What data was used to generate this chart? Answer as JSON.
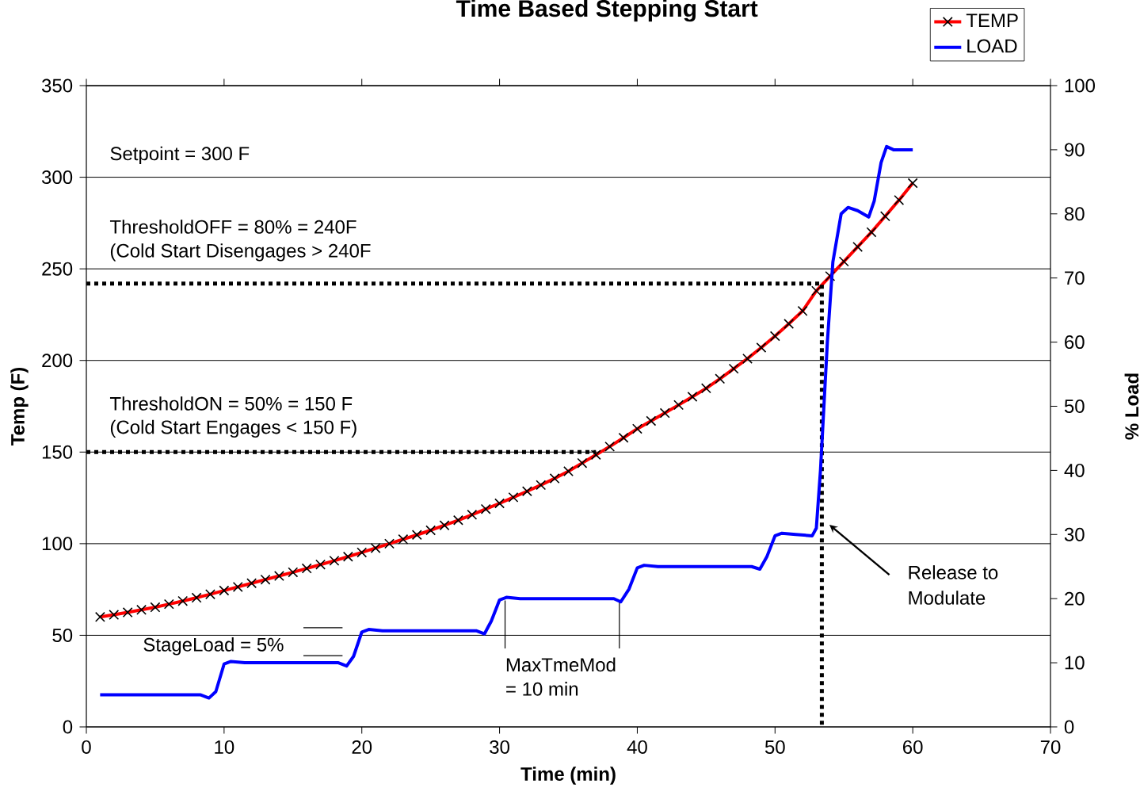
{
  "chart_data": {
    "type": "line",
    "title": "Time Based Stepping Start",
    "xlabel": "Time (min)",
    "ylabel": "Temp (F)",
    "y2label": "% Load",
    "xlim": [
      0,
      70
    ],
    "xticks": [
      0,
      10,
      20,
      30,
      40,
      50,
      60,
      70
    ],
    "ylim": [
      0,
      350
    ],
    "yticks": [
      0,
      50,
      100,
      150,
      200,
      250,
      300,
      350
    ],
    "y2lim": [
      0,
      100
    ],
    "y2ticks": [
      0,
      10,
      20,
      30,
      40,
      50,
      60,
      70,
      80,
      90,
      100
    ],
    "grid": "y",
    "legend": "top right",
    "series": [
      {
        "name": "TEMP",
        "color": "#ff0000",
        "marker": "cross",
        "axis": "y",
        "x": [
          1,
          2,
          3,
          4,
          5,
          6,
          7,
          8,
          9,
          10,
          11,
          12,
          13,
          14,
          15,
          16,
          17,
          18,
          19,
          20,
          21,
          22,
          23,
          24,
          25,
          26,
          27,
          28,
          29,
          30,
          31,
          32,
          33,
          34,
          35,
          36,
          37,
          38,
          39,
          40,
          41,
          42,
          43,
          44,
          45,
          46,
          47,
          48,
          49,
          50,
          51,
          52,
          53,
          54,
          55,
          56,
          57,
          58,
          59,
          60
        ],
        "values": [
          60,
          61.2,
          62.5,
          63.9,
          65.3,
          67,
          68.7,
          70.5,
          72.4,
          74.4,
          76.4,
          78.4,
          80.4,
          82.4,
          84.4,
          86.5,
          88.6,
          90.7,
          92.9,
          95.2,
          97.6,
          100,
          102.4,
          104.8,
          107.3,
          110,
          112.8,
          115.8,
          118.9,
          122,
          125.3,
          128.6,
          132,
          135.6,
          139.5,
          144,
          148.5,
          153,
          157.8,
          162.7,
          167,
          171.3,
          175.7,
          180.2,
          184.8,
          190,
          195.5,
          201,
          207,
          213.3,
          220,
          227,
          238,
          246,
          254,
          262,
          270,
          278.7,
          287.5,
          296.8
        ]
      },
      {
        "name": "LOAD",
        "color": "#0000ff",
        "marker": "none",
        "axis": "y2",
        "x": [
          1,
          8.3,
          8.9,
          9.4,
          10,
          10.5,
          11.5,
          18.3,
          18.9,
          19.4,
          20,
          20.5,
          21.5,
          28.3,
          28.9,
          29.4,
          30,
          30.5,
          31.5,
          38.3,
          38.8,
          39.4,
          40,
          40.5,
          41.5,
          48.3,
          48.9,
          49.4,
          50,
          50.5,
          51.5,
          52.7,
          53,
          53.3,
          53.8,
          54.2,
          54.8,
          55.3,
          56,
          56.8,
          57.2,
          57.7,
          58.1,
          58.6,
          60
        ],
        "values": [
          5,
          5,
          4.5,
          5.5,
          9.8,
          10.2,
          10,
          10,
          9.5,
          11,
          14.8,
          15.2,
          15,
          15,
          14.5,
          16.5,
          19.8,
          20.2,
          20,
          20,
          19.5,
          21.5,
          24.8,
          25.2,
          25,
          25,
          24.6,
          26.5,
          29.8,
          30.2,
          30,
          29.8,
          31,
          40,
          60,
          72.5,
          80,
          81,
          80.5,
          79.5,
          82,
          88,
          90.5,
          90,
          90
        ]
      },
      {
        "color": "#000000",
        "line_style": "dotted",
        "axis": "y",
        "x": [
          0,
          53.4,
          53.4
        ],
        "values": [
          242,
          242,
          0
        ]
      },
      {
        "color": "#000000",
        "line_style": "dotted",
        "axis": "y",
        "x": [
          0,
          37
        ],
        "values": [
          150,
          150
        ]
      }
    ],
    "annotations": [
      "Setpoint = 300 F",
      "ThresholdOFF = 80% =  240F",
      "(Cold Start Disengages > 240F",
      "ThresholdON = 50% = 150 F",
      "(Cold Start Engages < 150 F)",
      "StageLoad = 5%",
      {
        "text": "MaxTmeMod",
        "x": 30.4,
        "y": 69
      },
      "= 10 min",
      "Release to",
      "Modulate"
    ]
  }
}
